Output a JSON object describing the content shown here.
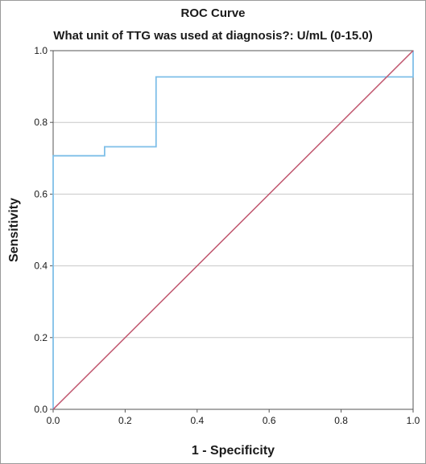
{
  "chart_data": {
    "type": "line",
    "title": "ROC Curve",
    "subtitle": "What unit of TTG was used at diagnosis?: U/mL (0-15.0)",
    "xlabel": "1 - Specificity",
    "ylabel": "Sensitivity",
    "xlim": [
      0,
      1
    ],
    "ylim": [
      0,
      1
    ],
    "x_ticks": [
      "0.0",
      "0.2",
      "0.4",
      "0.6",
      "0.8",
      "1.0"
    ],
    "y_ticks": [
      "0.0",
      "0.2",
      "0.4",
      "0.6",
      "0.8",
      "1.0"
    ],
    "grid": "horizontal",
    "series": [
      {
        "color": "#7fbfe8",
        "step": true,
        "points": [
          [
            0.0,
            0.0
          ],
          [
            0.0,
            0.707
          ],
          [
            0.143,
            0.707
          ],
          [
            0.143,
            0.732
          ],
          [
            0.286,
            0.732
          ],
          [
            0.286,
            0.927
          ],
          [
            1.0,
            0.927
          ],
          [
            1.0,
            1.0
          ]
        ]
      },
      {
        "color": "#c0566e",
        "step": false,
        "points": [
          [
            0.0,
            0.0
          ],
          [
            1.0,
            1.0
          ]
        ]
      }
    ]
  }
}
